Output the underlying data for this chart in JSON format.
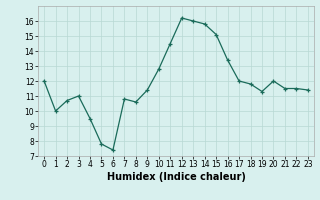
{
  "x": [
    0,
    1,
    2,
    3,
    4,
    5,
    6,
    7,
    8,
    9,
    10,
    11,
    12,
    13,
    14,
    15,
    16,
    17,
    18,
    19,
    20,
    21,
    22,
    23
  ],
  "y": [
    12.0,
    10.0,
    10.7,
    11.0,
    9.5,
    7.8,
    7.4,
    10.8,
    10.6,
    11.4,
    12.8,
    14.5,
    16.2,
    16.0,
    15.8,
    15.1,
    13.4,
    12.0,
    11.8,
    11.3,
    12.0,
    11.5,
    11.5,
    11.4
  ],
  "xlabel": "Humidex (Indice chaleur)",
  "ylim": [
    7,
    17
  ],
  "yticks": [
    7,
    8,
    9,
    10,
    11,
    12,
    13,
    14,
    15,
    16
  ],
  "xticks": [
    0,
    1,
    2,
    3,
    4,
    5,
    6,
    7,
    8,
    9,
    10,
    11,
    12,
    13,
    14,
    15,
    16,
    17,
    18,
    19,
    20,
    21,
    22,
    23
  ],
  "xtick_labels": [
    "0",
    "1",
    "2",
    "3",
    "4",
    "5",
    "6",
    "7",
    "8",
    "9",
    "10",
    "11",
    "12",
    "13",
    "14",
    "15",
    "16",
    "17",
    "18",
    "19",
    "20",
    "21",
    "22",
    "23"
  ],
  "line_color": "#1a6b5a",
  "marker": "+",
  "bg_color": "#d8f0ee",
  "grid_color": "#b8d8d4",
  "xlabel_fontsize": 7,
  "tick_fontsize": 5.5,
  "linewidth": 0.9,
  "markersize": 3.5
}
